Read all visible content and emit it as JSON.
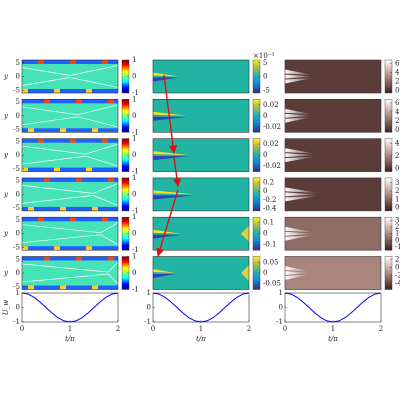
{
  "chart_data": [
    {
      "type": "heatmap",
      "ylabel": "y",
      "ylim": [
        -6,
        6
      ],
      "yticks": [
        5,
        0,
        -5
      ],
      "clim": [
        -1,
        1
      ],
      "cticks": [
        1,
        0,
        -1
      ],
      "colormap": "jet"
    },
    {
      "type": "heatmap",
      "ylabel": "y",
      "ylim": [
        -6,
        6
      ],
      "yticks": [
        5,
        0,
        -5
      ],
      "clim": [
        -1,
        1
      ],
      "cticks": [
        1,
        0,
        -1
      ],
      "colormap": "jet"
    },
    {
      "type": "heatmap",
      "ylabel": "y",
      "ylim": [
        -6,
        6
      ],
      "yticks": [
        5,
        0,
        -5
      ],
      "clim": [
        -1,
        1
      ],
      "cticks": [
        1,
        0,
        -1
      ],
      "colormap": "jet"
    },
    {
      "type": "heatmap",
      "ylabel": "y",
      "ylim": [
        -6,
        6
      ],
      "yticks": [
        5,
        0,
        -5
      ],
      "clim": [
        -1,
        1
      ],
      "cticks": [
        1,
        0,
        -1
      ],
      "colormap": "jet"
    },
    {
      "type": "heatmap",
      "ylabel": "y",
      "ylim": [
        -6,
        6
      ],
      "yticks": [
        5,
        0,
        -5
      ],
      "clim": [
        -1,
        1
      ],
      "cticks": [
        1,
        0,
        -1
      ],
      "colormap": "jet"
    },
    {
      "type": "heatmap",
      "ylabel": "y",
      "ylim": [
        -6,
        6
      ],
      "yticks": [
        5,
        0,
        -5
      ],
      "clim": [
        -1,
        1
      ],
      "cticks": [
        1,
        0,
        -1
      ],
      "colormap": "jet"
    },
    {
      "type": "heatmap",
      "clim": [
        -6,
        6
      ],
      "cticks": [
        5,
        0,
        -5
      ],
      "cbar_label": "×10⁻³",
      "colormap": "parula"
    },
    {
      "type": "heatmap",
      "clim": [
        -0.03,
        0.03
      ],
      "cticks": [
        0.02,
        0,
        -0.02
      ],
      "colormap": "parula"
    },
    {
      "type": "heatmap",
      "clim": [
        -0.03,
        0.03
      ],
      "cticks": [
        0.02,
        0,
        -0.02
      ],
      "colormap": "parula"
    },
    {
      "type": "heatmap",
      "clim": [
        -0.45,
        0.3
      ],
      "cticks": [
        0.2,
        0,
        -0.2,
        -0.4
      ],
      "colormap": "parula"
    },
    {
      "type": "heatmap",
      "clim": [
        -0.15,
        0.15
      ],
      "cticks": [
        0.1,
        0,
        -0.1
      ],
      "colormap": "parula"
    },
    {
      "type": "heatmap",
      "clim": [
        -0.08,
        0.08
      ],
      "cticks": [
        0.05,
        0,
        -0.05
      ],
      "colormap": "parula"
    },
    {
      "type": "heatmap",
      "clim": [
        -5,
        68
      ],
      "cticks": [
        60,
        40,
        20,
        0
      ],
      "colormap": "pink"
    },
    {
      "type": "heatmap",
      "clim": [
        -5,
        68
      ],
      "cticks": [
        60,
        40,
        20,
        0
      ],
      "colormap": "pink"
    },
    {
      "type": "heatmap",
      "clim": [
        -5,
        48
      ],
      "cticks": [
        40,
        20,
        0
      ],
      "colormap": "pink"
    },
    {
      "type": "heatmap",
      "clim": [
        -4,
        36
      ],
      "cticks": [
        30,
        20,
        10,
        0
      ],
      "colormap": "pink"
    },
    {
      "type": "heatmap",
      "clim": [
        -15,
        35
      ],
      "cticks": [
        30,
        20,
        10,
        0,
        -10
      ],
      "colormap": "pink"
    },
    {
      "type": "heatmap",
      "clim": [
        -55,
        28
      ],
      "cticks": [
        20,
        0,
        -20,
        -40
      ],
      "colormap": "pink"
    },
    {
      "type": "line",
      "ylabel": "U_w",
      "xlabel": "t/π",
      "color": "#0000ff",
      "xlim": [
        0,
        2
      ],
      "ylim": [
        -1,
        1
      ],
      "xticks": [
        0,
        1,
        2
      ],
      "yticks": [
        1,
        0,
        -1
      ],
      "x": [
        0,
        0.125,
        0.25,
        0.375,
        0.5,
        0.625,
        0.75,
        0.875,
        1,
        1.125,
        1.25,
        1.375,
        1.5,
        1.625,
        1.75,
        1.875,
        2
      ],
      "values": [
        1,
        0.924,
        0.707,
        0.383,
        0,
        -0.383,
        -0.707,
        -0.924,
        -1,
        -0.924,
        -0.707,
        -0.383,
        0,
        0.383,
        0.707,
        0.924,
        1
      ]
    },
    {
      "type": "line",
      "xlabel": "t/π",
      "color": "#0000ff",
      "xlim": [
        0,
        2
      ],
      "ylim": [
        -1,
        1
      ],
      "xticks": [
        0,
        1,
        2
      ],
      "yticks": [
        1,
        0,
        -1
      ],
      "x": [
        0,
        0.125,
        0.25,
        0.375,
        0.5,
        0.625,
        0.75,
        0.875,
        1,
        1.125,
        1.25,
        1.375,
        1.5,
        1.625,
        1.75,
        1.875,
        2
      ],
      "values": [
        1,
        0.924,
        0.707,
        0.383,
        0,
        -0.383,
        -0.707,
        -0.924,
        -1,
        -0.924,
        -0.707,
        -0.383,
        0,
        0.383,
        0.707,
        0.924,
        1
      ]
    },
    {
      "type": "line",
      "xlabel": "t/π",
      "color": "#0000ff",
      "xlim": [
        0,
        2
      ],
      "ylim": [
        -1,
        1
      ],
      "xticks": [
        0,
        1,
        2
      ],
      "yticks": [
        1,
        0,
        -1
      ],
      "x": [
        0,
        0.125,
        0.25,
        0.375,
        0.5,
        0.625,
        0.75,
        0.875,
        1,
        1.125,
        1.25,
        1.375,
        1.5,
        1.625,
        1.75,
        1.875,
        2
      ],
      "values": [
        1,
        0.924,
        0.707,
        0.383,
        0,
        -0.383,
        -0.707,
        -0.924,
        -1,
        -0.924,
        -0.707,
        -0.383,
        0,
        0.383,
        0.707,
        0.924,
        1
      ]
    }
  ]
}
